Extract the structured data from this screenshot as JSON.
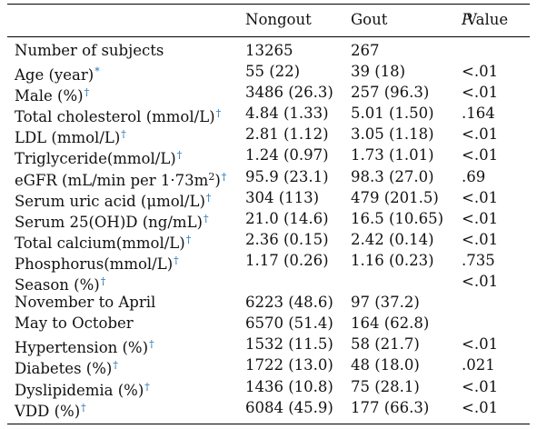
{
  "header": {
    "col_nongout": "Nongout",
    "col_gout": "Gout",
    "col_p_italic": "P",
    "col_p_rest": " Value"
  },
  "rows": [
    {
      "label": "Number of subjects",
      "mark": "",
      "nongout": "13265",
      "gout": "267",
      "p": ""
    },
    {
      "label": "Age (year)",
      "mark": "*",
      "nongout": "55 (22)",
      "gout": "39 (18)",
      "p": "<.01"
    },
    {
      "label": "Male (%)",
      "mark": "†",
      "nongout": "3486 (26.3)",
      "gout": "257 (96.3)",
      "p": "<.01"
    },
    {
      "label": "Total cholesterol (mmol/L)",
      "mark": "†",
      "nongout": "4.84 (1.33)",
      "gout": "5.01 (1.50)",
      "p": ".164"
    },
    {
      "label": "LDL (mmol/L)",
      "mark": "†",
      "nongout": "2.81 (1.12)",
      "gout": "3.05 (1.18)",
      "p": "<.01"
    },
    {
      "label": "Triglyceride(mmol/L)",
      "mark": "†",
      "nongout": "1.24 (0.97)",
      "gout": "1.73 (1.01)",
      "p": "<.01"
    },
    {
      "label": "eGFR (mL/min per 1·73m",
      "sup": "2",
      "label_after": ")",
      "mark": "†",
      "nongout": "95.9 (23.1)",
      "gout": "98.3 (27.0)",
      "p": ".69"
    },
    {
      "label": "Serum uric acid (μmol/L)",
      "mark": "†",
      "nongout": "304 (113)",
      "gout": "479 (201.5)",
      "p": "<.01"
    },
    {
      "label": "Serum 25(OH)D (ng/mL)",
      "mark": "†",
      "nongout": "21.0 (14.6)",
      "gout": "16.5 (10.65)",
      "p": "<.01"
    },
    {
      "label": "Total calcium(mmol/L)",
      "mark": "†",
      "nongout": "2.36 (0.15)",
      "gout": "2.42 (0.14)",
      "p": "<.01"
    },
    {
      "label": "Phosphorus(mmol/L)",
      "mark": "†",
      "nongout": "1.17 (0.26)",
      "gout": "1.16 (0.23)",
      "p": ".735"
    },
    {
      "label": "Season (%)",
      "mark": "†",
      "nongout": "",
      "gout": "",
      "p": "<.01"
    },
    {
      "label": "November to April",
      "mark": "",
      "nongout": "6223 (48.6)",
      "gout": "97 (37.2)",
      "p": ""
    },
    {
      "label": "May to October",
      "mark": "",
      "nongout": "6570 (51.4)",
      "gout": "164 (62.8)",
      "p": ""
    },
    {
      "label": "Hypertension (%)",
      "mark": "†",
      "nongout": "1532 (11.5)",
      "gout": "58 (21.7)",
      "p": "<.01"
    },
    {
      "label": "Diabetes (%)",
      "mark": "†",
      "nongout": "1722 (13.0)",
      "gout": "48 (18.0)",
      "p": ".021"
    },
    {
      "label": "Dyslipidemia (%)",
      "mark": "†",
      "nongout": "1436 (10.8)",
      "gout": "75 (28.1)",
      "p": "<.01"
    },
    {
      "label": "VDD (%)",
      "mark": "†",
      "nongout": "6084 (45.9)",
      "gout": "177 (66.3)",
      "p": "<.01"
    }
  ]
}
